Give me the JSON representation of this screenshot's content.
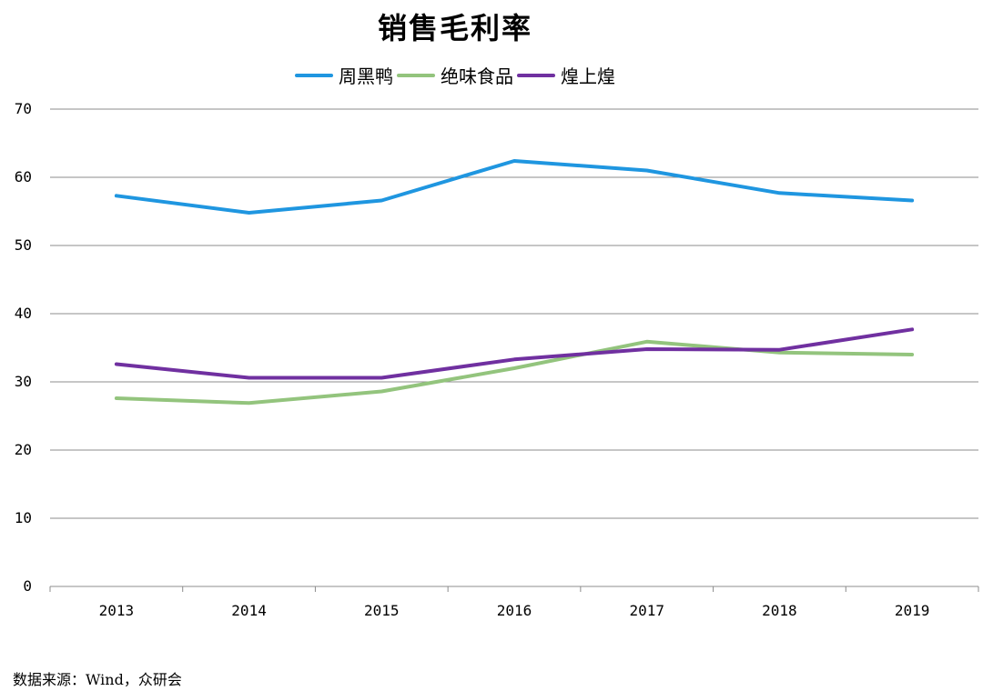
{
  "chart_data": {
    "type": "line",
    "title": "销售毛利率",
    "xlabel": "",
    "ylabel": "",
    "categories": [
      "2013",
      "2014",
      "2015",
      "2016",
      "2017",
      "2018",
      "2019"
    ],
    "ylim": [
      0,
      70
    ],
    "yticks": [
      "0",
      "10",
      "20",
      "30",
      "40",
      "50",
      "60",
      "70"
    ],
    "grid": true,
    "legend_position": "top",
    "series": [
      {
        "name": "周黑鸭",
        "color": "#1F96E0",
        "values": [
          57.3,
          54.8,
          56.6,
          62.4,
          61.0,
          57.7,
          56.6
        ]
      },
      {
        "name": "绝味食品",
        "color": "#93C47D",
        "values": [
          27.6,
          26.9,
          28.6,
          32.0,
          35.9,
          34.3,
          34.0
        ]
      },
      {
        "name": "煌上煌",
        "color": "#7030A0",
        "values": [
          32.6,
          30.6,
          30.6,
          33.3,
          34.8,
          34.7,
          37.7
        ]
      }
    ]
  },
  "footer": {
    "source": "数据来源：Wind，众研会"
  }
}
